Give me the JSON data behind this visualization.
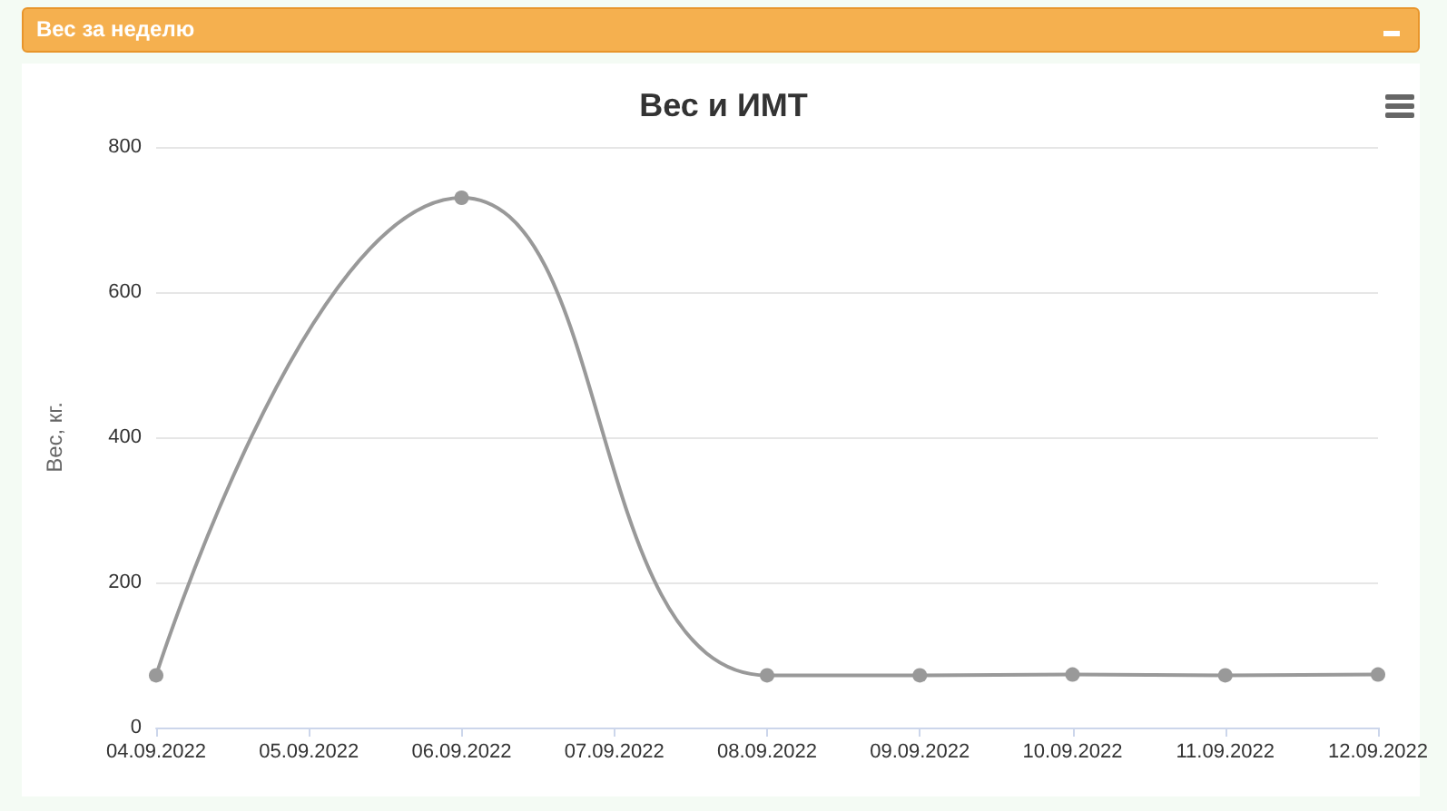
{
  "chart_data": {
    "type": "line",
    "title": "Вес и ИМТ",
    "subtitle": "Вес за неделю",
    "ylabel": "Вес, кг.",
    "categories": [
      "04.09.2022",
      "05.09.2022",
      "06.09.2022",
      "07.09.2022",
      "08.09.2022",
      "09.09.2022",
      "10.09.2022",
      "11.09.2022",
      "12.09.2022"
    ],
    "series": [
      {
        "color": "#999999",
        "values": [
          72,
          null,
          730,
          null,
          72,
          72,
          73,
          72,
          73
        ]
      }
    ],
    "ylim": [
      0,
      800
    ],
    "yticks": [
      0,
      200,
      400,
      600,
      800
    ],
    "grid": "y",
    "marker": "circle",
    "line_style": "solid"
  }
}
